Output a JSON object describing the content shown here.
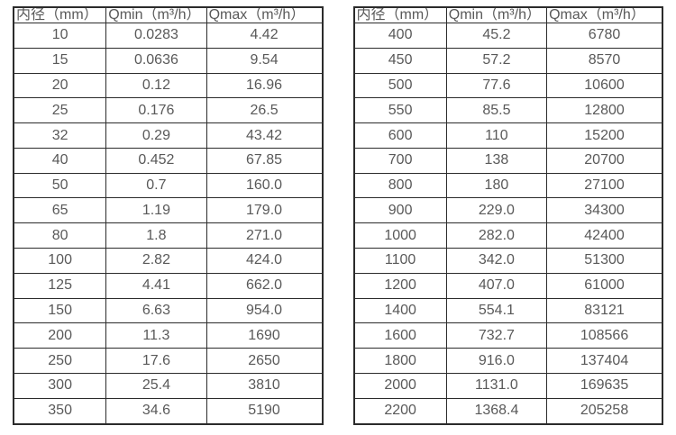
{
  "colors": {
    "background": "#ffffff",
    "text": "#595959",
    "grid_border": "#2b2b2b"
  },
  "chart_data": [
    {
      "type": "table",
      "title": "",
      "columns": [
        "内径（mm）",
        "Qmin（m³/h）",
        "Qmax（m³/h）"
      ],
      "rows": [
        [
          "10",
          "0.0283",
          "4.42"
        ],
        [
          "15",
          "0.0636",
          "9.54"
        ],
        [
          "20",
          "0.12",
          "16.96"
        ],
        [
          "25",
          "0.176",
          "26.5"
        ],
        [
          "32",
          "0.29",
          "43.42"
        ],
        [
          "40",
          "0.452",
          "67.85"
        ],
        [
          "50",
          "0.7",
          "160.0"
        ],
        [
          "65",
          "1.19",
          "179.0"
        ],
        [
          "80",
          "1.8",
          "271.0"
        ],
        [
          "100",
          "2.82",
          "424.0"
        ],
        [
          "125",
          "4.41",
          "662.0"
        ],
        [
          "150",
          "6.63",
          "954.0"
        ],
        [
          "200",
          "11.3",
          "1690"
        ],
        [
          "250",
          "17.6",
          "2650"
        ],
        [
          "300",
          "25.4",
          "3810"
        ],
        [
          "350",
          "34.6",
          "5190"
        ]
      ]
    },
    {
      "type": "table",
      "title": "",
      "columns": [
        "内径（mm）",
        "Qmin（m³/h）",
        "Qmax（m³/h）"
      ],
      "rows": [
        [
          "400",
          "45.2",
          "6780"
        ],
        [
          "450",
          "57.2",
          "8570"
        ],
        [
          "500",
          "77.6",
          "10600"
        ],
        [
          "550",
          "85.5",
          "12800"
        ],
        [
          "600",
          "110",
          "15200"
        ],
        [
          "700",
          "138",
          "20700"
        ],
        [
          "800",
          "180",
          "27100"
        ],
        [
          "900",
          "229.0",
          "34300"
        ],
        [
          "1000",
          "282.0",
          "42400"
        ],
        [
          "1100",
          "342.0",
          "51300"
        ],
        [
          "1200",
          "407.0",
          "61000"
        ],
        [
          "1400",
          "554.1",
          "83121"
        ],
        [
          "1600",
          "732.7",
          "108566"
        ],
        [
          "1800",
          "916.0",
          "137404"
        ],
        [
          "2000",
          "1131.0",
          "169635"
        ],
        [
          "2200",
          "1368.4",
          "205258"
        ]
      ]
    }
  ]
}
